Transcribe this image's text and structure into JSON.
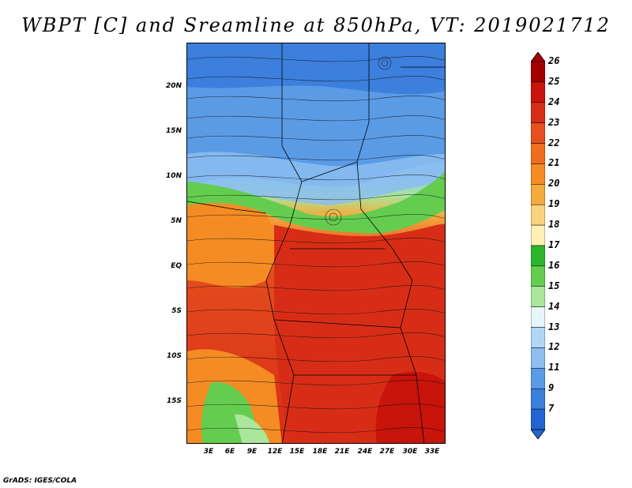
{
  "title": "WBPT [C] and Sreamline at 850hPa, VT: 2019021712",
  "credit": "GrADS: IGES/COLA",
  "lat_labels": [
    "20N",
    "15N",
    "10N",
    "5N",
    "EQ",
    "5S",
    "10S",
    "15S"
  ],
  "lon_labels": [
    "3E",
    "6E",
    "9E",
    "12E",
    "15E",
    "18E",
    "21E",
    "24E",
    "27E",
    "30E",
    "33E"
  ],
  "colorbar": {
    "labels": [
      "26",
      "25",
      "24",
      "23",
      "22",
      "21",
      "20",
      "19",
      "18",
      "17",
      "16",
      "15",
      "14",
      "13",
      "12",
      "11",
      "9",
      "7"
    ],
    "colors": [
      "#a50000",
      "#c8140a",
      "#d72d16",
      "#e6501e",
      "#f06e1e",
      "#f58c23",
      "#f5aa3c",
      "#fad27d",
      "#fff0b4",
      "#2db42d",
      "#64cd50",
      "#aae69b",
      "#e6f5fa",
      "#afd7f5",
      "#8cbef0",
      "#5a9be6",
      "#3c7fdc",
      "#2364d2"
    ]
  },
  "map": {
    "description_colors": {
      "blue_north": "#5a9be6",
      "light_blue": "#8cbef0",
      "green_band": "#64cd50",
      "orange_west": "#f58c23",
      "red_center": "#d72d16",
      "dark_red_se": "#c8140a"
    }
  }
}
